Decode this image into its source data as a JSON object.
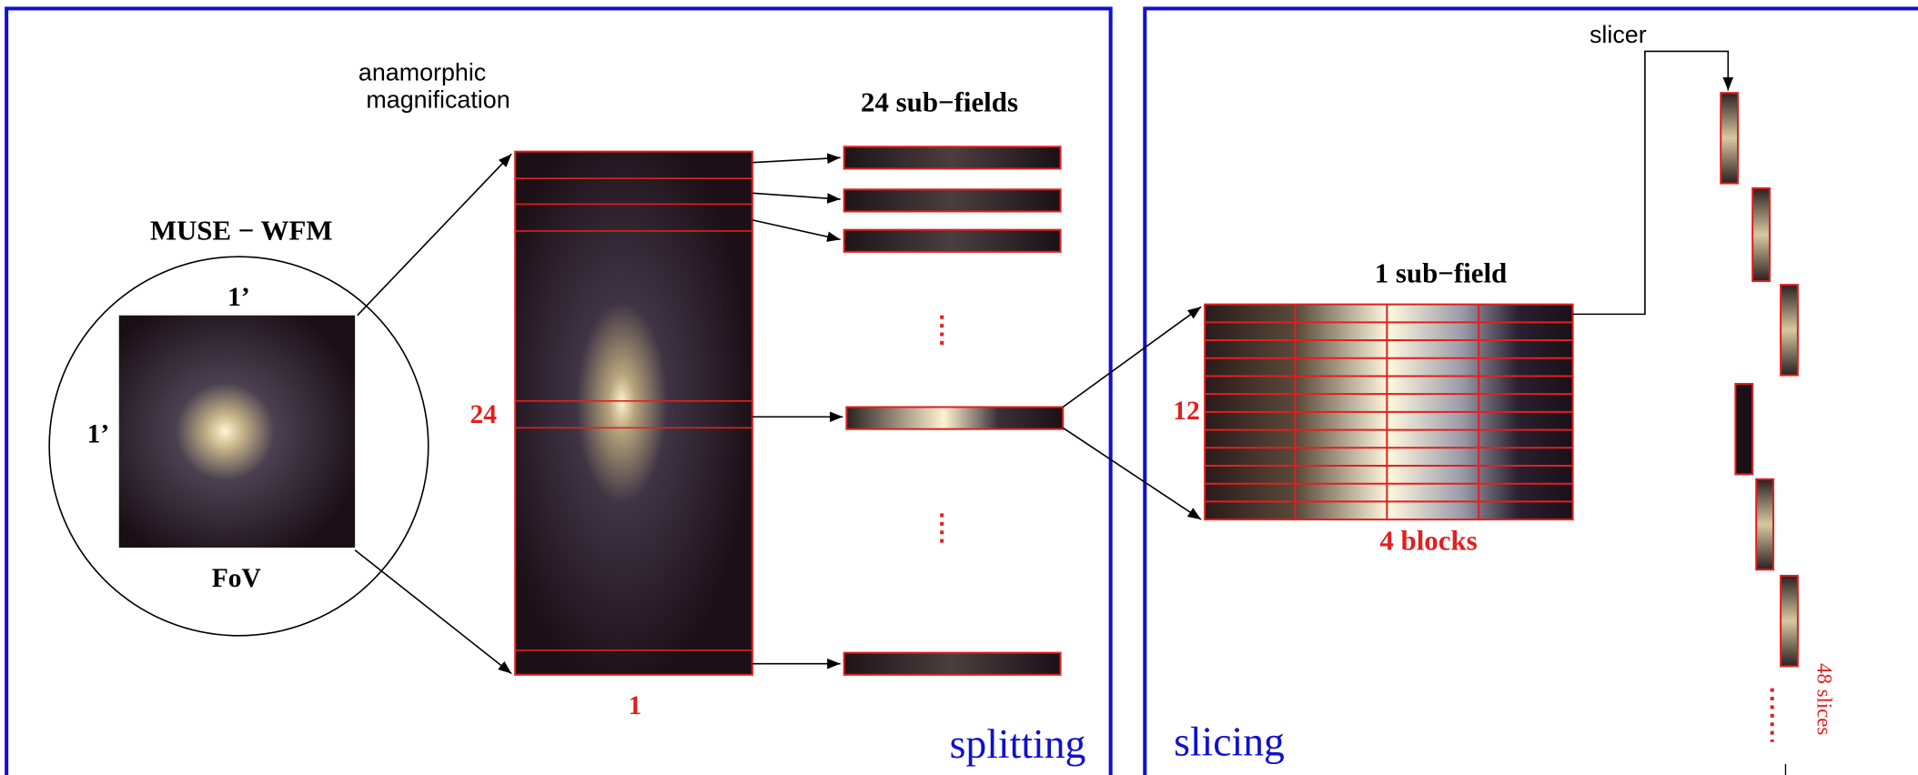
{
  "splitting": {
    "label": "splitting",
    "instrument": "MUSE − WFM",
    "fov_top": "1’",
    "fov_left": "1’",
    "fov_label": "FoV",
    "magnification": [
      "anamorphic",
      "magnification"
    ],
    "subfields_title": "24 sub−fields",
    "count_top": "24",
    "count_bottom": "1"
  },
  "slicing": {
    "label": "slicing",
    "slicer": "slicer",
    "subfield_title": "1 sub−field",
    "rows": "12",
    "blocks": "4 blocks",
    "slices": "48 slices"
  }
}
